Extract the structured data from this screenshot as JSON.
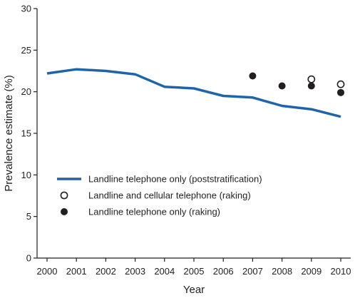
{
  "chart_data": {
    "type": "line",
    "title": "",
    "xlabel": "Year",
    "ylabel": "Prevalence estimate (%)",
    "x": [
      2000,
      2001,
      2002,
      2003,
      2004,
      2005,
      2006,
      2007,
      2008,
      2009,
      2010
    ],
    "x_tick_labels": [
      "2000",
      "2001",
      "2002",
      "2003",
      "2004",
      "2005",
      "2006",
      "2007",
      "2008",
      "2009",
      "2010"
    ],
    "ylim": [
      0,
      30
    ],
    "y_ticks": [
      0,
      5,
      10,
      15,
      20,
      25,
      30
    ],
    "y_tick_labels": [
      "0",
      "5",
      "10",
      "15",
      "20",
      "25",
      "30"
    ],
    "grid": false,
    "legend_position": "lower-left",
    "series": [
      {
        "name": "Landline telephone only (poststratification)",
        "style": "line",
        "color": "#1f64a8",
        "x": [
          2000,
          2001,
          2002,
          2003,
          2004,
          2005,
          2006,
          2007,
          2008,
          2009,
          2010
        ],
        "values": [
          22.2,
          22.7,
          22.5,
          22.1,
          20.6,
          20.4,
          19.5,
          19.3,
          18.3,
          17.9,
          17.0
        ]
      },
      {
        "name": "Landline and cellular telephone (raking)",
        "style": "open-circle",
        "color": "#231f20",
        "x": [
          2009,
          2010
        ],
        "values": [
          21.5,
          20.9
        ]
      },
      {
        "name": "Landline telephone only (raking)",
        "style": "filled-circle",
        "color": "#231f20",
        "x": [
          2007,
          2008,
          2009,
          2010
        ],
        "values": [
          21.9,
          20.7,
          20.7,
          19.9
        ]
      }
    ]
  }
}
